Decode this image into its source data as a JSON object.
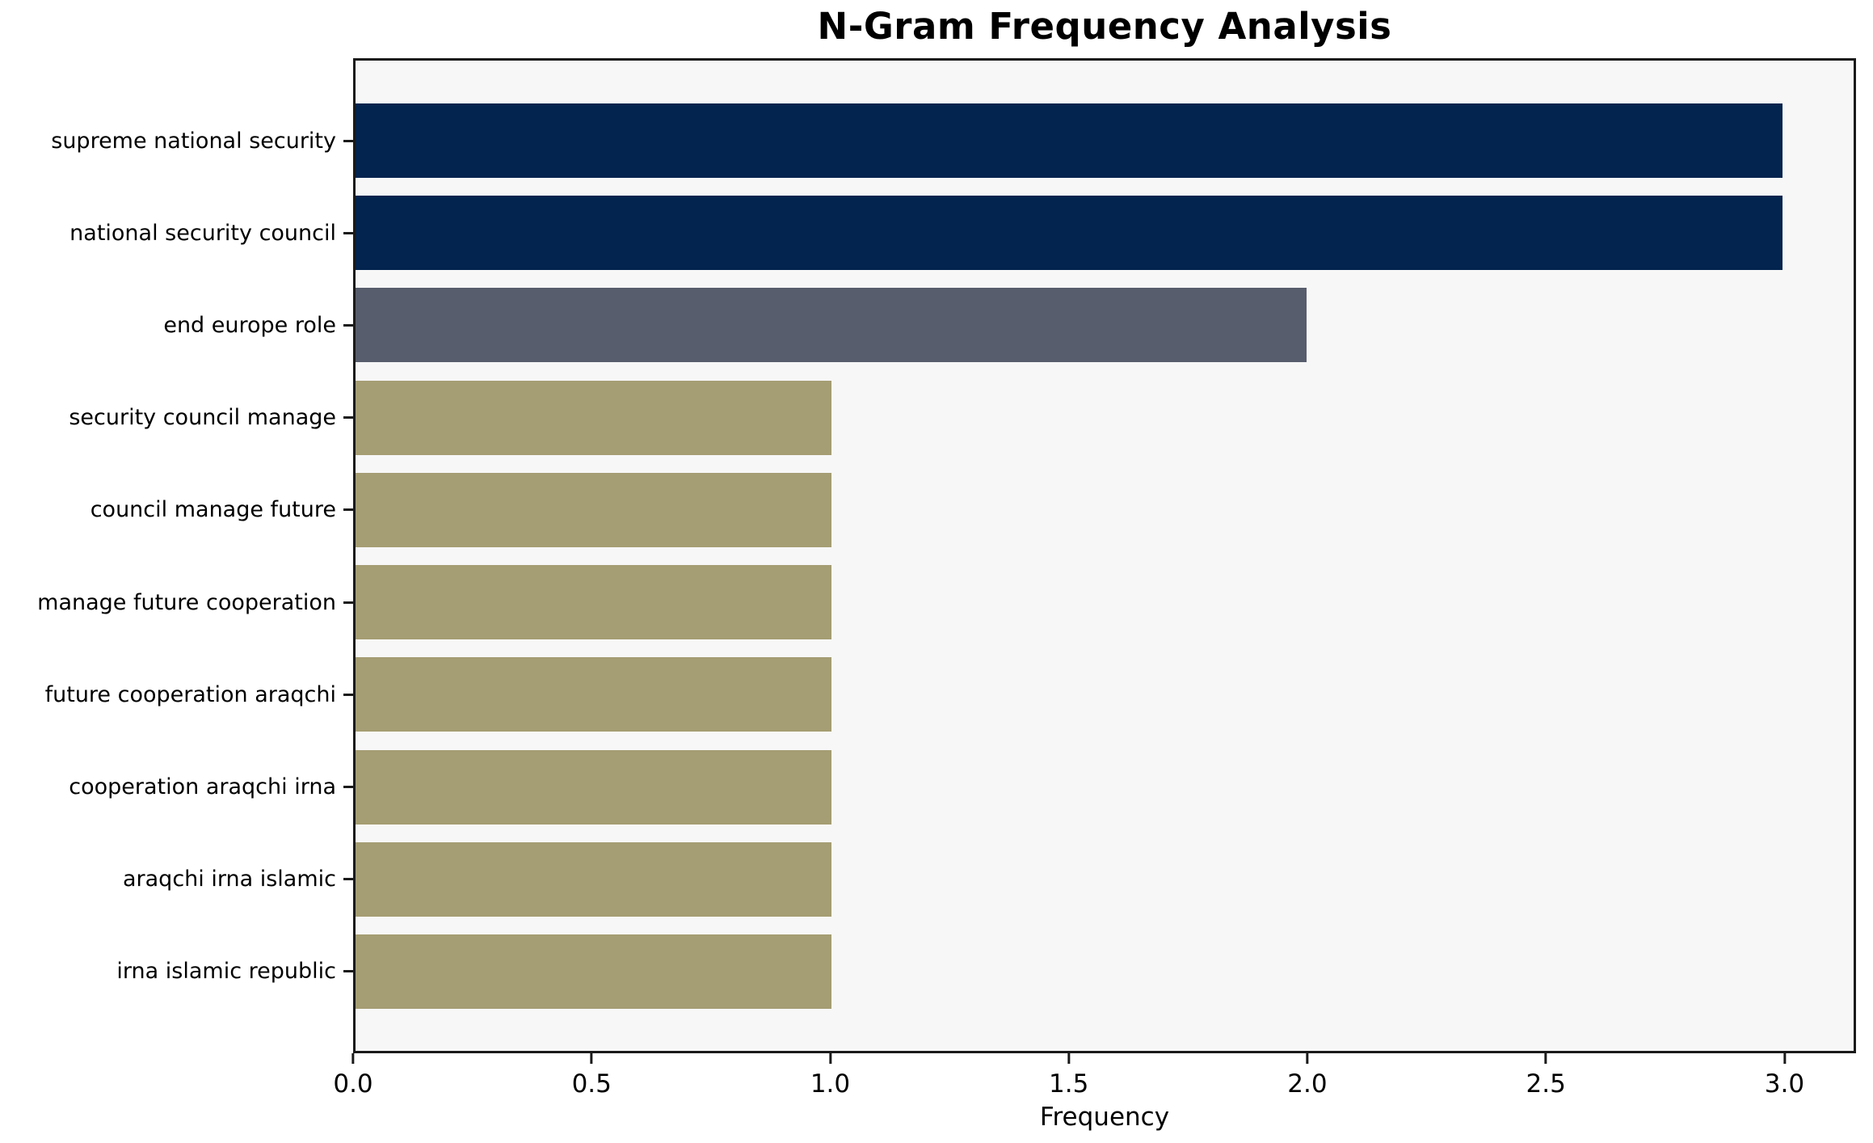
{
  "chart_data": {
    "type": "bar",
    "orientation": "horizontal",
    "title": "N-Gram Frequency Analysis",
    "xlabel": "Frequency",
    "ylabel": "",
    "categories": [
      "supreme national security",
      "national security council",
      "end europe role",
      "security council manage",
      "council manage future",
      "manage future cooperation",
      "future cooperation araqchi",
      "cooperation araqchi irna",
      "araqchi irna islamic",
      "irna islamic republic"
    ],
    "values": [
      3,
      3,
      2,
      1,
      1,
      1,
      1,
      1,
      1,
      1
    ],
    "bar_colors": [
      "#02244e",
      "#02244e",
      "#575d6c",
      "#a59d73",
      "#a59d73",
      "#a59d73",
      "#a59d73",
      "#a59d73",
      "#a59d73",
      "#a59d73"
    ],
    "xlim": [
      0,
      3.15
    ],
    "xtick_labels": [
      "0.0",
      "0.5",
      "1.0",
      "1.5",
      "2.0",
      "2.5",
      "3.0"
    ],
    "grid": false,
    "legend_position": "none",
    "plot_background": "#f7f7f7",
    "figure_background": "#ffffff",
    "spine_color": "#1a1a1a"
  }
}
